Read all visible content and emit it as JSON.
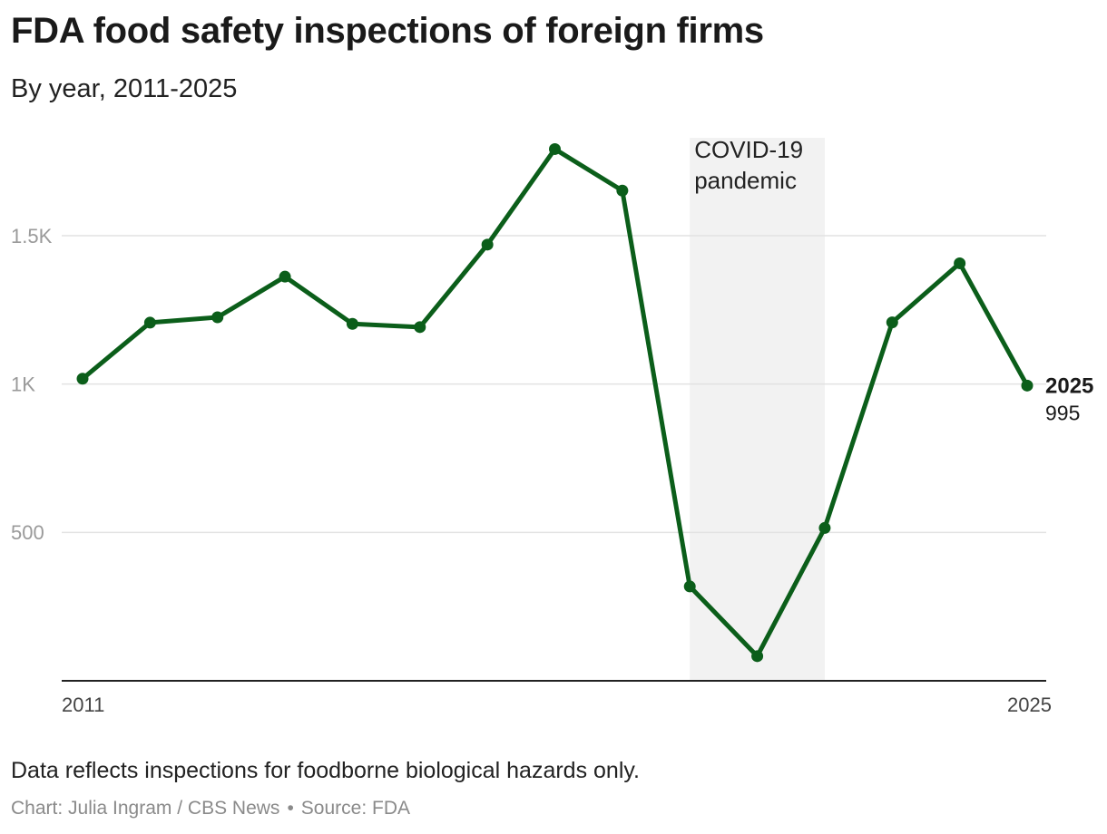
{
  "title": "FDA food safety inspections of foreign firms",
  "subtitle": "By year, 2011-2025",
  "note": "Data reflects inspections for foodborne biological hazards only.",
  "credit": {
    "chart_by": "Chart: Julia Ingram / CBS News",
    "separator": "•",
    "source": "Source: FDA"
  },
  "colors": {
    "line": "#0b5e1a",
    "grid": "#e2e2e2",
    "axis": "#222222",
    "shade": "#f2f2f2",
    "tick": "#9a9a9a"
  },
  "chart_data": {
    "type": "line",
    "x": [
      2011,
      2012,
      2013,
      2014,
      2015,
      2016,
      2017,
      2018,
      2019,
      2020,
      2021,
      2022,
      2023,
      2024,
      2025
    ],
    "series": [
      {
        "values": [
          1018,
          1207,
          1225,
          1362,
          1203,
          1192,
          1470,
          1792,
          1652,
          318,
          83,
          515,
          1208,
          1407,
          995
        ]
      }
    ],
    "ylim": [
      0,
      1830
    ],
    "xlim": [
      2011,
      2025
    ],
    "yticks": [
      {
        "value": 500,
        "label": "500"
      },
      {
        "value": 1000,
        "label": "1K"
      },
      {
        "value": 1500,
        "label": "1.5K"
      }
    ],
    "xticks": [
      {
        "value": 2011,
        "label": "2011"
      },
      {
        "value": 2025,
        "label": "2025"
      }
    ],
    "grid": true,
    "annotation": {
      "label_lines": [
        "COVID-19",
        "pandemic"
      ],
      "x_start": 2020,
      "x_end": 2022
    },
    "end_label": {
      "year": "2025",
      "value": "995"
    }
  }
}
